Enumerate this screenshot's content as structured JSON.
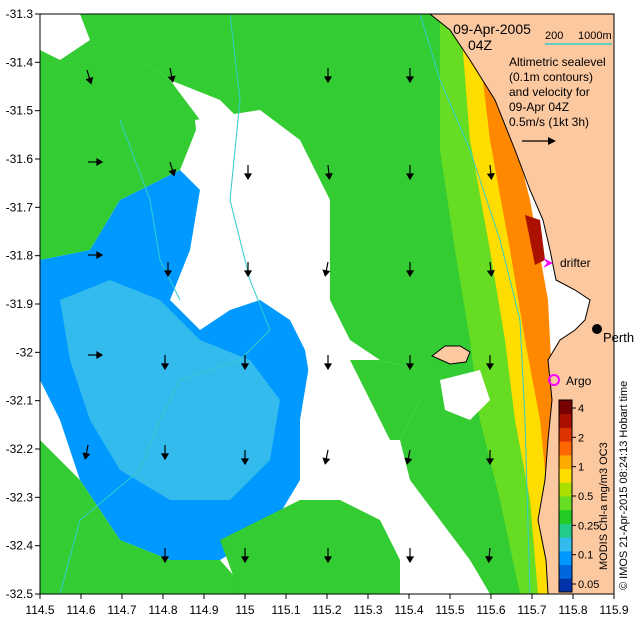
{
  "title": {
    "date": "09-Apr-2005",
    "time": "04Z"
  },
  "bathymetry_legend": {
    "label_200": "200",
    "label_1000": "1000m",
    "color": "#33cccc"
  },
  "velocity_legend": {
    "lines": [
      "Altimetric sealevel",
      "(0.1m contours)",
      "and velocity for",
      "09-Apr 04Z",
      "0.5m/s (1kt 3h)"
    ]
  },
  "markers": {
    "drifter": {
      "label": "drifter",
      "lon": 115.75,
      "lat": -31.81,
      "color": "#ff00ff"
    },
    "argo": {
      "label": "Argo",
      "lon": 115.75,
      "lat": -32.07,
      "color": "#ff00ff"
    },
    "perth": {
      "label": "Perth",
      "lon": 115.86,
      "lat": -31.95
    }
  },
  "colorbar": {
    "ticks": [
      "4",
      "2",
      "1",
      "0.5",
      "0.25",
      "0.1",
      "0.05"
    ],
    "colors": [
      "#0033aa",
      "#0066dd",
      "#0099ff",
      "#33bbee",
      "#22cc88",
      "#22cc22",
      "#66dd22",
      "#aadd00",
      "#ffdd00",
      "#ffaa00",
      "#ff6600",
      "#dd3300",
      "#aa1100",
      "#770000"
    ],
    "caption": "MODIS Chl-a mg/m3 OC3"
  },
  "credit": "© IMOS 21-Apr-2015 08:24:13 Hobart time",
  "axes": {
    "x_ticks": [
      "114.5",
      "114.6",
      "114.7",
      "114.8",
      "114.9",
      "115",
      "115.1",
      "115.2",
      "115.3",
      "115.4",
      "115.5",
      "115.6",
      "115.7",
      "115.8",
      "115.9"
    ],
    "y_ticks": [
      "-31.3",
      "-31.4",
      "-31.5",
      "-31.6",
      "-31.7",
      "-31.8",
      "-31.9",
      "-32",
      "-32.1",
      "-32.2",
      "-32.3",
      "-32.4",
      "-32.5"
    ]
  },
  "colors": {
    "land": "#fcc8a0",
    "coast": "#000000",
    "green": "#33cc33",
    "light_green": "#55dd33",
    "cyan": "#33bbee",
    "blue": "#0099ff"
  }
}
